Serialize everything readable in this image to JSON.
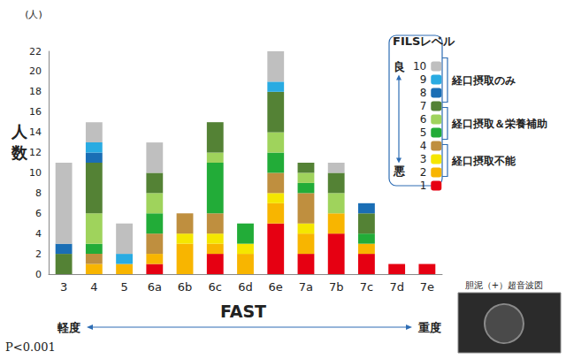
{
  "chart_data": {
    "type": "bar",
    "stacked": true,
    "grid": false,
    "legend": "right",
    "legend_title": "FILSレベル",
    "x_label": "FAST",
    "y_label": "人数",
    "y_unit_label": "(人)",
    "categories": [
      "3",
      "4",
      "5",
      "6a",
      "6b",
      "6c",
      "6d",
      "6e",
      "7a",
      "7b",
      "7c",
      "7d",
      "7e"
    ],
    "ylim": [
      0,
      22
    ],
    "yticks": [
      0,
      2,
      4,
      6,
      8,
      10,
      12,
      14,
      16,
      18,
      20,
      22
    ],
    "series": [
      {
        "name": "1",
        "color": "#e60012",
        "values": [
          0,
          0,
          0,
          1,
          0,
          2,
          0,
          5,
          2,
          4,
          2,
          1,
          1
        ]
      },
      {
        "name": "2",
        "color": "#f8b500",
        "values": [
          0,
          1,
          1,
          1,
          3,
          1,
          2,
          2,
          2,
          2,
          1,
          0,
          0
        ]
      },
      {
        "name": "3",
        "color": "#f5e600",
        "values": [
          0,
          0,
          0,
          0,
          1,
          1,
          1,
          1,
          1,
          0,
          0,
          0,
          0
        ]
      },
      {
        "name": "4",
        "color": "#bf8f3f",
        "values": [
          0,
          1,
          0,
          2,
          2,
          2,
          0,
          2,
          3,
          0,
          0,
          0,
          0
        ]
      },
      {
        "name": "5",
        "color": "#22ac38",
        "values": [
          0,
          1,
          0,
          2,
          0,
          5,
          2,
          2,
          1,
          0,
          1,
          0,
          0
        ]
      },
      {
        "name": "6",
        "color": "#9fd35c",
        "values": [
          0,
          3,
          0,
          2,
          0,
          1,
          0,
          2,
          1,
          2,
          0,
          0,
          0
        ]
      },
      {
        "name": "7",
        "color": "#548235",
        "values": [
          2,
          5,
          0,
          2,
          0,
          3,
          0,
          4,
          1,
          2,
          2,
          0,
          0
        ]
      },
      {
        "name": "8",
        "color": "#1a6eb5",
        "values": [
          1,
          1,
          0,
          0,
          0,
          0,
          0,
          0,
          0,
          0,
          1,
          0,
          0
        ]
      },
      {
        "name": "9",
        "color": "#29abe2",
        "values": [
          0,
          1,
          1,
          0,
          0,
          0,
          0,
          1,
          0,
          0,
          0,
          0,
          0
        ]
      },
      {
        "name": "10",
        "color": "#bfbfbf",
        "values": [
          8,
          2,
          3,
          3,
          0,
          0,
          0,
          3,
          0,
          1,
          0,
          0,
          0
        ]
      }
    ],
    "legend_scale": {
      "good": "良",
      "bad": "悪"
    },
    "legend_groups": [
      {
        "label": "経口摂取のみ",
        "levels": [
          "10",
          "9",
          "8",
          "7"
        ]
      },
      {
        "label": "経口摂取＆栄養補助",
        "levels": [
          "6",
          "5",
          "4"
        ]
      },
      {
        "label": "経口摂取不能",
        "levels": [
          "3",
          "2",
          "1"
        ]
      }
    ],
    "severity": {
      "mild": "軽度",
      "severe": "重度"
    },
    "p_value_text": "P<0.001",
    "image_caption": "胆泥（+）超音波図"
  }
}
